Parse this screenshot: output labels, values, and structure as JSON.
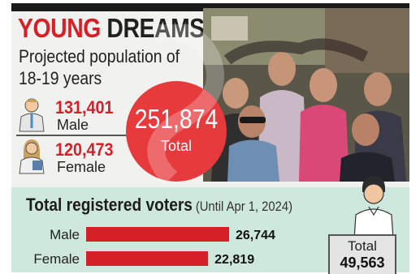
{
  "title": {
    "highlight": "YOUNG",
    "rest": "DREAMS"
  },
  "subtitle": "Projected population of 18-19 years",
  "stats": {
    "male": {
      "value": "131,401",
      "label": "Male"
    },
    "female": {
      "value": "120,473",
      "label": "Female"
    }
  },
  "total_population": {
    "value": "251,874",
    "label": "Total"
  },
  "voters": {
    "title": "Total registered voters",
    "note": "(Until Apr 1, 2024)",
    "total_label": "Total",
    "total_value": "49,563"
  },
  "colors": {
    "accent": "#d62027",
    "band": "#cfe8dd",
    "circle": "#e73a3d"
  },
  "chart_data": [
    {
      "type": "bar",
      "orientation": "horizontal",
      "title": "Total registered voters",
      "subtitle": "(Until Apr 1, 2024)",
      "categories": [
        "Male",
        "Female"
      ],
      "values": [
        26744,
        22819
      ],
      "value_labels": [
        "26,744",
        "22,819"
      ],
      "grid": false
    },
    {
      "type": "table",
      "title": "Projected population of 18-19 years",
      "categories": [
        "Male",
        "Female",
        "Total"
      ],
      "values": [
        131401,
        120473,
        251874
      ]
    }
  ]
}
